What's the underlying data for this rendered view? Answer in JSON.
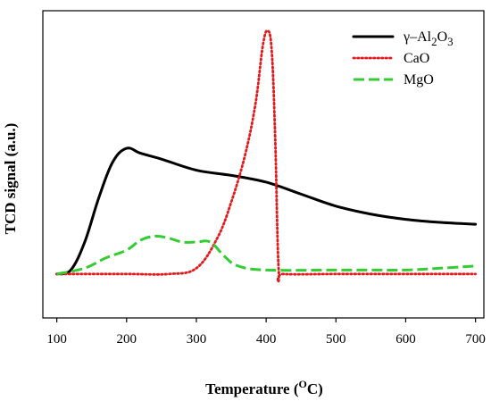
{
  "chart_data": {
    "type": "line",
    "title": "",
    "xlabel": "Temperature",
    "xlabel_unit_open": " (",
    "xlabel_unit_sup": "O",
    "xlabel_unit_main": "C)",
    "ylabel": "TCD signal (a.u.)",
    "xlim": [
      80,
      712
    ],
    "ylim": [
      0,
      100
    ],
    "x_ticks": [
      100,
      200,
      300,
      400,
      500,
      600,
      700
    ],
    "y_ticks_shown": false,
    "grid": false,
    "legend_position": "top-right",
    "series": [
      {
        "name": "γ–Al2O3",
        "legend_parts": [
          {
            "t": "γ–Al",
            "sub": false
          },
          {
            "t": "2",
            "sub": true
          },
          {
            "t": "O",
            "sub": false
          },
          {
            "t": "3",
            "sub": true
          }
        ],
        "color": "#000000",
        "style": "solid",
        "x": [
          100,
          120,
          140,
          160,
          180,
          200,
          220,
          250,
          300,
          350,
          400,
          450,
          500,
          550,
          600,
          650,
          700
        ],
        "y": [
          14.3,
          15.6,
          24.7,
          39.0,
          50.7,
          55.2,
          53.6,
          51.7,
          48.1,
          46.4,
          44.2,
          40.3,
          36.4,
          33.8,
          32.1,
          31.1,
          30.5
        ]
      },
      {
        "name": "CaO",
        "color": "#e31a1c",
        "style": "dotted",
        "x": [
          100,
          200,
          260,
          300,
          330,
          350,
          370,
          385,
          395,
          402,
          408,
          413,
          418,
          425,
          500,
          600,
          700
        ],
        "y": [
          14.3,
          14.3,
          14.3,
          16.2,
          26.0,
          37.7,
          53.2,
          70.1,
          88.3,
          93.5,
          87.0,
          58.4,
          15.6,
          14.3,
          14.3,
          14.3,
          14.3
        ]
      },
      {
        "name": "MgO",
        "color": "#33cc33",
        "style": "dashed",
        "x": [
          100,
          140,
          170,
          200,
          220,
          240,
          260,
          280,
          300,
          320,
          340,
          360,
          400,
          500,
          550,
          600,
          650,
          700
        ],
        "y": [
          14.3,
          16.2,
          19.5,
          22.1,
          25.3,
          26.6,
          26.0,
          24.7,
          24.7,
          24.7,
          20.1,
          16.9,
          15.6,
          15.6,
          15.6,
          15.6,
          16.2,
          16.9
        ]
      }
    ]
  }
}
